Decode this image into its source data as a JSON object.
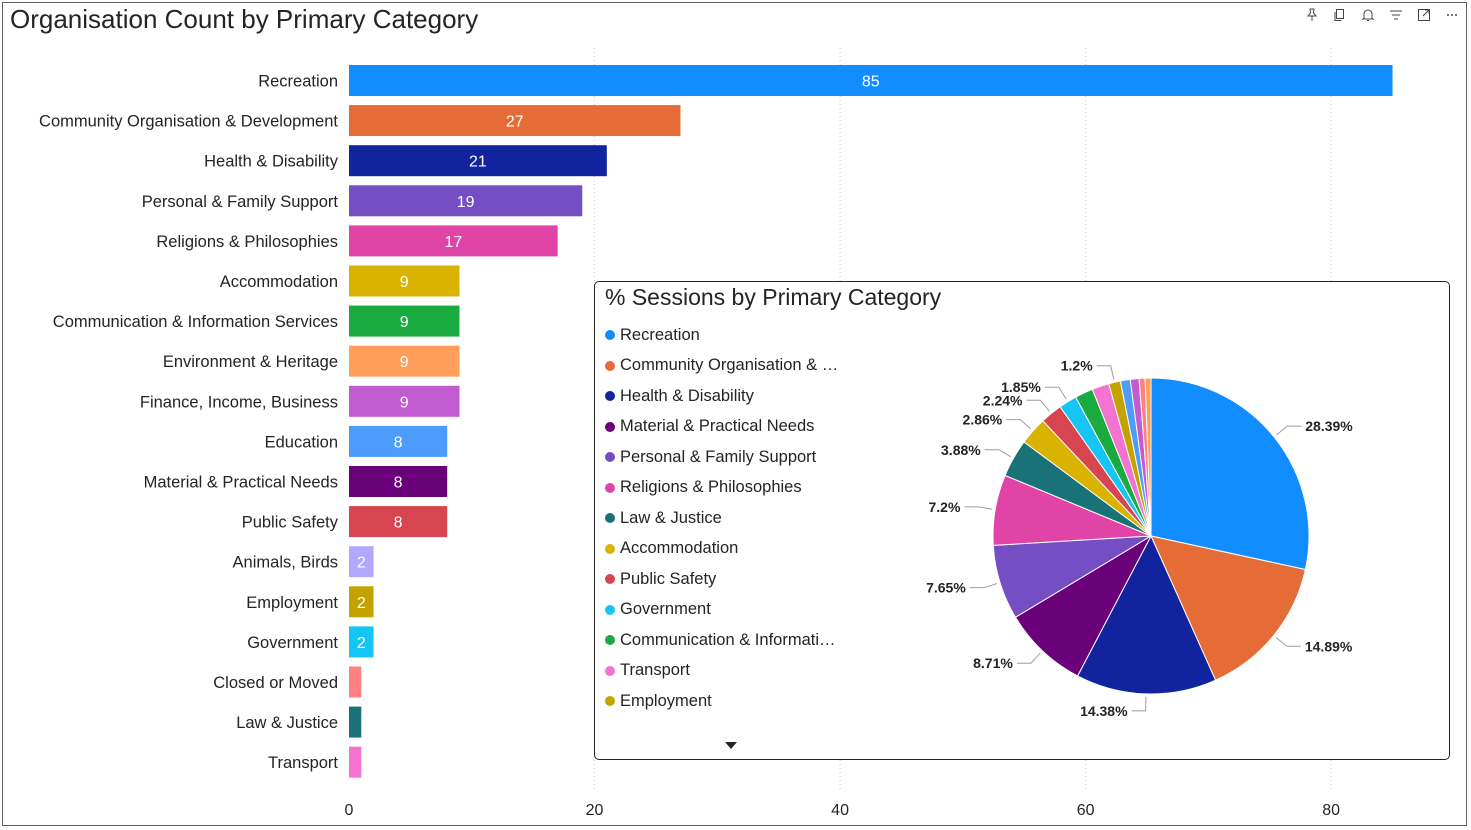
{
  "bar_chart": {
    "title": "Organisation Count by Primary Category",
    "x_ticks": [
      "0",
      "20",
      "40",
      "60",
      "80"
    ]
  },
  "pie_chart": {
    "title": "% Sessions by Primary Category",
    "legend": [
      {
        "label": "Recreation",
        "color": "#118dff"
      },
      {
        "label": "Community Organisation & …",
        "color": "#e66c37"
      },
      {
        "label": "Health & Disability",
        "color": "#12239e"
      },
      {
        "label": "Material & Practical Needs",
        "color": "#6b007b"
      },
      {
        "label": "Personal & Family Support",
        "color": "#744ec2"
      },
      {
        "label": "Religions & Philosophies",
        "color": "#e044a7"
      },
      {
        "label": "Law & Justice",
        "color": "#197278"
      },
      {
        "label": "Accommodation",
        "color": "#d9b300"
      },
      {
        "label": "Public Safety",
        "color": "#d64550"
      },
      {
        "label": "Government",
        "color": "#15c6f4"
      },
      {
        "label": "Communication & Informati…",
        "color": "#1aab40"
      },
      {
        "label": "Transport",
        "color": "#f472d0"
      },
      {
        "label": "Employment",
        "color": "#c4a200"
      }
    ]
  },
  "toolbar": {
    "icons": [
      "pin-icon",
      "copy-icon",
      "bell-icon",
      "filter-icon",
      "focus-mode-icon",
      "more-options-icon"
    ]
  },
  "chart_data": [
    {
      "type": "bar",
      "orientation": "horizontal",
      "title": "Organisation Count by Primary Category",
      "categories": [
        "Recreation",
        "Community Organisation & Development",
        "Health & Disability",
        "Personal & Family Support",
        "Religions & Philosophies",
        "Accommodation",
        "Communication & Information Services",
        "Environment & Heritage",
        "Finance, Income, Business",
        "Education",
        "Material & Practical Needs",
        "Public Safety",
        "Animals, Birds",
        "Employment",
        "Government",
        "Closed or Moved",
        "Law & Justice",
        "Transport"
      ],
      "values": [
        85,
        27,
        21,
        19,
        17,
        9,
        9,
        9,
        9,
        8,
        8,
        8,
        2,
        2,
        2,
        1,
        1,
        1
      ],
      "data_labels": [
        "85",
        "27",
        "21",
        "19",
        "17",
        "9",
        "9",
        "9",
        "9",
        "8",
        "8",
        "8",
        "2",
        "2",
        "2",
        "",
        "",
        ""
      ],
      "colors": [
        "#118dff",
        "#e66c37",
        "#12239e",
        "#744ec2",
        "#e044a7",
        "#d9b300",
        "#1aab40",
        "#ff9e5b",
        "#c05ccf",
        "#4d9bfa",
        "#6b007b",
        "#d64550",
        "#b3a7ff",
        "#c4a200",
        "#15c6f4",
        "#ff8080",
        "#197278",
        "#f472d0"
      ],
      "xlim": [
        0,
        88
      ],
      "x_ticks": [
        0,
        20,
        40,
        60,
        80
      ],
      "grid": true
    },
    {
      "type": "pie",
      "title": "% Sessions by Primary Category",
      "labels": [
        "Recreation",
        "Community Organisation & …",
        "Health & Disability",
        "Material & Practical Needs",
        "Personal & Family Support",
        "Religions & Philosophies",
        "Law & Justice",
        "Accommodation",
        "Public Safety",
        "Government",
        "Communication & Informati…",
        "Transport",
        "Employment",
        "",
        "",
        "",
        ""
      ],
      "values": [
        28.39,
        14.89,
        14.38,
        8.71,
        7.65,
        7.2,
        3.88,
        2.86,
        2.24,
        1.85,
        1.85,
        1.75,
        1.2,
        1.0,
        0.9,
        0.6,
        0.6
      ],
      "data_labels": [
        "28.39%",
        "14.89%",
        "14.38%",
        "8.71%",
        "7.65%",
        "7.2%",
        "3.88%",
        "2.86%",
        "2.24%",
        "1.85%",
        "",
        "",
        "1.2%",
        "",
        "",
        "",
        ""
      ],
      "colors": [
        "#118dff",
        "#e66c37",
        "#12239e",
        "#6b007b",
        "#744ec2",
        "#e044a7",
        "#197278",
        "#d9b300",
        "#d64550",
        "#15c6f4",
        "#1aab40",
        "#f472d0",
        "#c4a200",
        "#4d9bfa",
        "#c05ccf",
        "#ff8080",
        "#ff9e5b"
      ],
      "legend_position": "left"
    }
  ]
}
